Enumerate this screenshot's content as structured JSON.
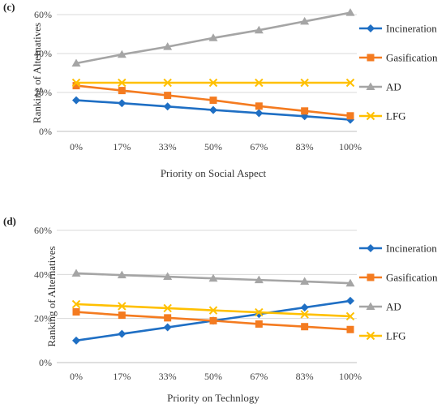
{
  "chart_data": [
    {
      "type": "line",
      "panel_label": "(c)",
      "categories": [
        "0%",
        "17%",
        "33%",
        "50%",
        "67%",
        "83%",
        "100%"
      ],
      "xlabel": "Priority on Social Aspect",
      "ylabel": "Ranking of Alternatives",
      "ylim": [
        0,
        60
      ],
      "yticks": [
        "0%",
        "20%",
        "40%",
        "60%"
      ],
      "grid": true,
      "legend": "right",
      "series": [
        {
          "name": "Incineration",
          "color": "#1f6fc4",
          "marker": "diamond",
          "values": [
            16,
            14.5,
            12.8,
            11,
            9.4,
            7.8,
            6
          ]
        },
        {
          "name": "Gasification",
          "color": "#f47b20",
          "marker": "square",
          "values": [
            23.5,
            21,
            18.5,
            16,
            13,
            10.5,
            8
          ]
        },
        {
          "name": "AD",
          "color": "#a5a5a5",
          "marker": "triangle",
          "values": [
            35,
            39.5,
            43.5,
            48,
            52,
            56.5,
            61
          ]
        },
        {
          "name": "LFG",
          "color": "#ffc000",
          "marker": "x",
          "values": [
            25,
            25,
            25,
            25,
            25,
            25,
            25
          ]
        }
      ]
    },
    {
      "type": "line",
      "panel_label": "(d)",
      "categories": [
        "0%",
        "17%",
        "33%",
        "50%",
        "67%",
        "83%",
        "100%"
      ],
      "xlabel": "Priority on Technlogy",
      "ylabel": "Ranking of Alternatives",
      "ylim": [
        0,
        60
      ],
      "yticks": [
        "0%",
        "20%",
        "40%",
        "60%"
      ],
      "grid": true,
      "legend": "right",
      "series": [
        {
          "name": "Incineration",
          "color": "#1f6fc4",
          "marker": "diamond",
          "values": [
            10,
            13,
            16,
            19,
            22,
            25,
            28
          ]
        },
        {
          "name": "Gasification",
          "color": "#f47b20",
          "marker": "square",
          "values": [
            23,
            21.5,
            20.3,
            19,
            17.5,
            16.3,
            15
          ]
        },
        {
          "name": "AD",
          "color": "#a5a5a5",
          "marker": "triangle",
          "values": [
            40.5,
            39.7,
            39,
            38.2,
            37.5,
            36.8,
            36
          ]
        },
        {
          "name": "LFG",
          "color": "#ffc000",
          "marker": "x",
          "values": [
            26.5,
            25.6,
            24.7,
            23.7,
            22.8,
            21.9,
            21
          ]
        }
      ]
    }
  ]
}
